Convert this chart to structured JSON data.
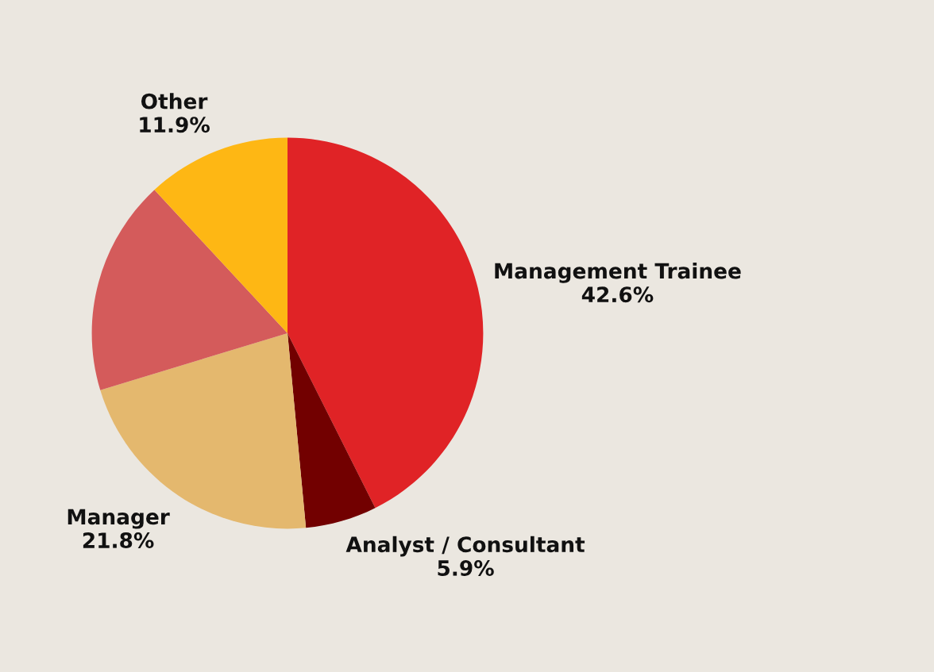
{
  "chart_data": {
    "type": "pie",
    "categories": [
      "Management Trainee",
      "Analyst / Consultant",
      "Manager",
      null,
      "Other"
    ],
    "values": [
      42.6,
      5.9,
      21.8,
      17.8,
      11.9
    ],
    "value_labels": [
      "42.6%",
      "5.9%",
      "21.8%",
      null,
      "11.9%"
    ],
    "colors": [
      "#e02326",
      "#720000",
      "#e4b86e",
      "#d45b5b",
      "#feb714"
    ]
  }
}
